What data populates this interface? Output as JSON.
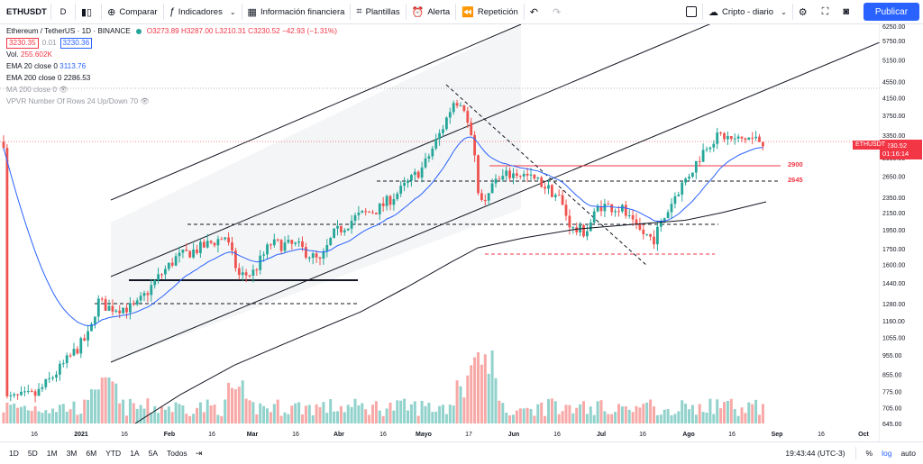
{
  "toolbar": {
    "symbol": "ETHUSDT",
    "interval": "D",
    "compare": "Comparar",
    "indicators": "Indicadores",
    "financials": "Información financiera",
    "templates": "Plantillas",
    "alert": "Alerta",
    "replay": "Repetición",
    "layout_name": "Cripto - diario",
    "publish": "Publicar"
  },
  "legend": {
    "title": "Ethereum / TetherUS · 1D · BINANCE",
    "ohlc": "O3273.89 H3287.00 L3210.31 C3230.52 −42.93 (−1.31%)",
    "bid": "3230.35",
    "spread": "0.01",
    "ask": "3230.36",
    "vol_label": "Vol.",
    "vol_value": "255.602K",
    "ema20_label": "EMA 20 close 0",
    "ema20_value": "3113.76",
    "ema200_label": "EMA 200 close 0",
    "ema200_value": "2286.53",
    "ma200_label": "MA 200 close 0",
    "vpvr_label": "VPVR Number Of Rows 24 Up/Down 70"
  },
  "price_axis": {
    "ticks": [
      "6250.00",
      "5750.00",
      "5150.00",
      "4550.00",
      "4150.00",
      "3750.00",
      "3350.00",
      "2950.00",
      "2650.00",
      "2350.00",
      "2150.00",
      "1950.00",
      "1750.00",
      "1600.00",
      "1440.00",
      "1280.00",
      "1160.00",
      "1055.00",
      "955.00",
      "855.00",
      "775.00",
      "705.00",
      "645.00"
    ],
    "last_symbol": "ETHUSDT",
    "last_price": "3230.52",
    "countdown": "01:16:14"
  },
  "levels": {
    "l2900": "2900",
    "l2645": "2645"
  },
  "time_axis": {
    "ticks": [
      "16",
      "2021",
      "16",
      "Feb",
      "16",
      "Mar",
      "16",
      "Abr",
      "16",
      "Mayo",
      "17",
      "Jun",
      "16",
      "Jul",
      "16",
      "Ago",
      "16",
      "Sep",
      "16",
      "Oct"
    ]
  },
  "bottom": {
    "ranges": [
      "1D",
      "5D",
      "1M",
      "3M",
      "6M",
      "YTD",
      "1A",
      "5A",
      "Todos"
    ],
    "clock": "19:43:44 (UTC-3)",
    "percent": "%",
    "log": "log",
    "auto": "auto"
  },
  "colors": {
    "up": "#26a69a",
    "down": "#ef5350",
    "ema20": "#2962ff",
    "ema200": "#131722",
    "accent": "#2962ff"
  },
  "chart_data": {
    "type": "candlestick",
    "symbol": "ETHUSDT",
    "price_scale": "log",
    "ylim": [
      645,
      6250
    ],
    "series": [
      {
        "name": "EMA 20 close 0",
        "last": 3113.76
      },
      {
        "name": "EMA 200 close 0",
        "last": 2286.53
      }
    ],
    "horizontal_levels": [
      2900,
      2645
    ],
    "last": {
      "open": 3273.89,
      "high": 3287.0,
      "low": 3210.31,
      "close": 3230.52,
      "change": -42.93,
      "change_pct": -1.31
    }
  }
}
